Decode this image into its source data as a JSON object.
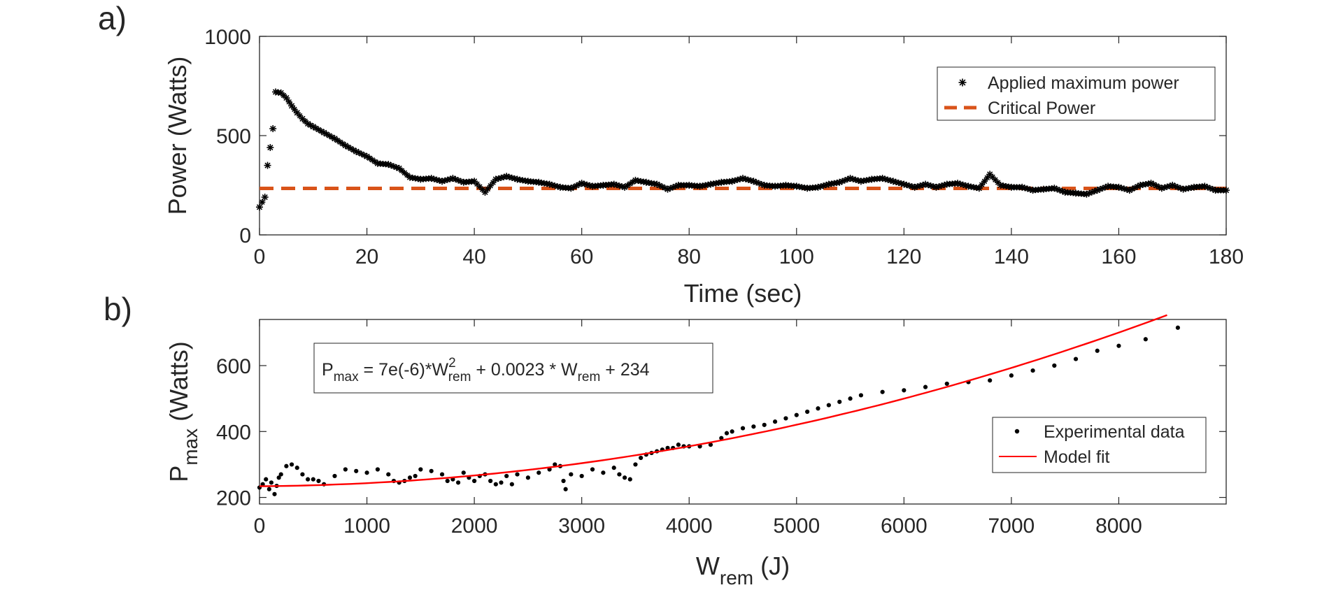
{
  "chart_data": [
    {
      "panel": "a)",
      "type": "scatter",
      "xlabel": "Time (sec)",
      "ylabel": "Power (Watts)",
      "xlim": [
        0,
        180
      ],
      "ylim": [
        0,
        1000
      ],
      "xticks": [
        "0",
        "20",
        "40",
        "60",
        "80",
        "100",
        "120",
        "140",
        "160",
        "180"
      ],
      "yticks": [
        "0",
        "500",
        "1000"
      ],
      "grid": false,
      "legend_position": "top-right",
      "series": [
        {
          "name": "Applied maximum power",
          "marker": "asterisk",
          "color": "#000000",
          "x": [
            0,
            1,
            1.5,
            2,
            2.5,
            3,
            4,
            5,
            6,
            7,
            8,
            9,
            10,
            12,
            14,
            16,
            18,
            20,
            22,
            24,
            26,
            28,
            30,
            32,
            34,
            36,
            38,
            40,
            42,
            44,
            46,
            48,
            50,
            52,
            54,
            56,
            58,
            60,
            62,
            64,
            66,
            68,
            70,
            72,
            74,
            76,
            78,
            80,
            82,
            84,
            86,
            88,
            90,
            92,
            94,
            96,
            98,
            100,
            102,
            104,
            106,
            108,
            110,
            112,
            114,
            116,
            118,
            120,
            122,
            124,
            126,
            128,
            130,
            132,
            134,
            136,
            138,
            140,
            142,
            144,
            146,
            148,
            150,
            152,
            154,
            156,
            158,
            160,
            162,
            164,
            166,
            168,
            170,
            172,
            174,
            176,
            178,
            180
          ],
          "y": [
            140,
            190,
            350,
            440,
            535,
            720,
            715,
            690,
            650,
            615,
            585,
            560,
            545,
            515,
            485,
            450,
            420,
            395,
            360,
            355,
            335,
            290,
            280,
            285,
            270,
            285,
            265,
            270,
            215,
            280,
            295,
            280,
            270,
            265,
            255,
            240,
            235,
            260,
            245,
            250,
            255,
            240,
            275,
            265,
            255,
            230,
            250,
            250,
            245,
            255,
            265,
            270,
            285,
            270,
            250,
            245,
            250,
            245,
            235,
            240,
            255,
            265,
            285,
            270,
            280,
            285,
            270,
            255,
            240,
            255,
            240,
            255,
            260,
            245,
            235,
            305,
            250,
            240,
            240,
            225,
            230,
            235,
            215,
            210,
            205,
            225,
            245,
            240,
            225,
            250,
            260,
            235,
            250,
            230,
            240,
            245,
            225,
            225
          ]
        },
        {
          "name": "Critical Power",
          "style": "dashed",
          "color": "#D95319",
          "x": [
            0,
            180
          ],
          "y": [
            234,
            234
          ]
        }
      ]
    },
    {
      "panel": "b)",
      "type": "scatter",
      "xlabel_main": "W",
      "xlabel_sub": "rem",
      "xlabel_unit": " (J)",
      "ylabel_main": "P",
      "ylabel_sub": "max",
      "ylabel_unit": " (Watts)",
      "xlim": [
        0,
        9000
      ],
      "ylim": [
        180,
        740
      ],
      "xticks": [
        "0",
        "1000",
        "2000",
        "3000",
        "4000",
        "5000",
        "6000",
        "7000",
        "8000"
      ],
      "yticks": [
        "200",
        "400",
        "600"
      ],
      "grid": false,
      "legend_position": "right",
      "annotation": {
        "p": "P",
        "max": "max",
        "eq1": " = 7e(-6)*W",
        "sup": "2",
        "rem1": "rem",
        "eq2": " + 0.0023 * W",
        "rem2": "rem",
        "eq3": " + 234"
      },
      "series": [
        {
          "name": "Experimental data",
          "marker": "dot",
          "color": "#000000",
          "x": [
            0,
            30,
            60,
            90,
            110,
            140,
            160,
            180,
            200,
            250,
            300,
            350,
            400,
            450,
            500,
            550,
            600,
            700,
            800,
            900,
            1000,
            1100,
            1200,
            1250,
            1300,
            1350,
            1400,
            1450,
            1500,
            1600,
            1700,
            1750,
            1800,
            1850,
            1900,
            1950,
            2000,
            2050,
            2100,
            2150,
            2200,
            2250,
            2300,
            2350,
            2400,
            2500,
            2600,
            2700,
            2750,
            2800,
            2830,
            2850,
            2900,
            3000,
            3100,
            3200,
            3300,
            3350,
            3400,
            3450,
            3500,
            3550,
            3600,
            3650,
            3700,
            3750,
            3800,
            3850,
            3900,
            3950,
            4000,
            4100,
            4200,
            4300,
            4350,
            4400,
            4500,
            4600,
            4700,
            4800,
            4900,
            5000,
            5100,
            5200,
            5300,
            5400,
            5500,
            5600,
            5800,
            6000,
            6200,
            6400,
            6600,
            6800,
            7000,
            7200,
            7400,
            7600,
            7800,
            8000,
            8250,
            8550
          ],
          "y": [
            230,
            240,
            255,
            225,
            245,
            210,
            235,
            260,
            270,
            295,
            300,
            290,
            270,
            255,
            255,
            250,
            240,
            265,
            285,
            280,
            275,
            285,
            270,
            250,
            245,
            250,
            260,
            265,
            285,
            280,
            270,
            250,
            255,
            245,
            275,
            260,
            250,
            265,
            270,
            250,
            240,
            245,
            265,
            240,
            270,
            260,
            275,
            285,
            300,
            295,
            250,
            225,
            270,
            265,
            285,
            275,
            290,
            270,
            260,
            255,
            300,
            320,
            330,
            335,
            340,
            345,
            350,
            350,
            360,
            355,
            355,
            355,
            360,
            380,
            395,
            400,
            410,
            415,
            420,
            430,
            440,
            450,
            460,
            470,
            480,
            490,
            500,
            510,
            520,
            525,
            535,
            545,
            550,
            555,
            570,
            585,
            600,
            620,
            645,
            660,
            680,
            715
          ]
        },
        {
          "name": "Model fit",
          "style": "solid",
          "color": "#FF0000",
          "equation": {
            "a": 7e-06,
            "b": 0.0023,
            "c": 234
          },
          "x_range": [
            0,
            8450
          ]
        }
      ]
    }
  ],
  "panels": {
    "a": {
      "label": "a)"
    },
    "b": {
      "label": "b)"
    }
  }
}
